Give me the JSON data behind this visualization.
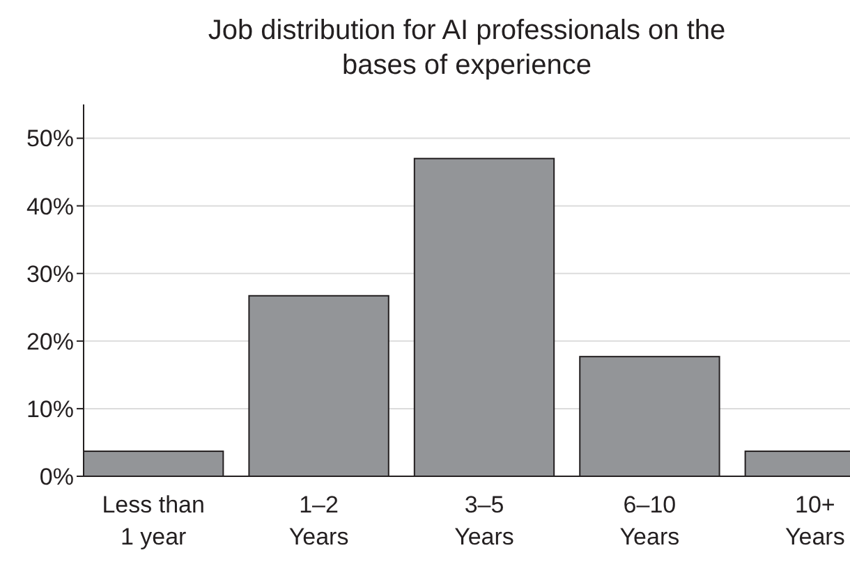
{
  "chart_data": {
    "type": "bar",
    "title": "Job distribution for AI professionals on the\nbases of experience",
    "categories": [
      "Less than\n1 year",
      "1–2\nYears",
      "3–5\nYears",
      "6–10\nYears",
      "10+\nYears"
    ],
    "values": [
      3.7,
      26.7,
      47,
      17.7,
      3.7
    ],
    "color": "#939598",
    "ylim": [
      0,
      55
    ],
    "yticks": [
      {
        "value": 0,
        "label": "0%"
      },
      {
        "value": 10,
        "label": "10%"
      },
      {
        "value": 20,
        "label": "20%"
      },
      {
        "value": 30,
        "label": "30%"
      },
      {
        "value": 40,
        "label": "40%"
      },
      {
        "value": 50,
        "label": "50%"
      }
    ],
    "grid": "y"
  }
}
